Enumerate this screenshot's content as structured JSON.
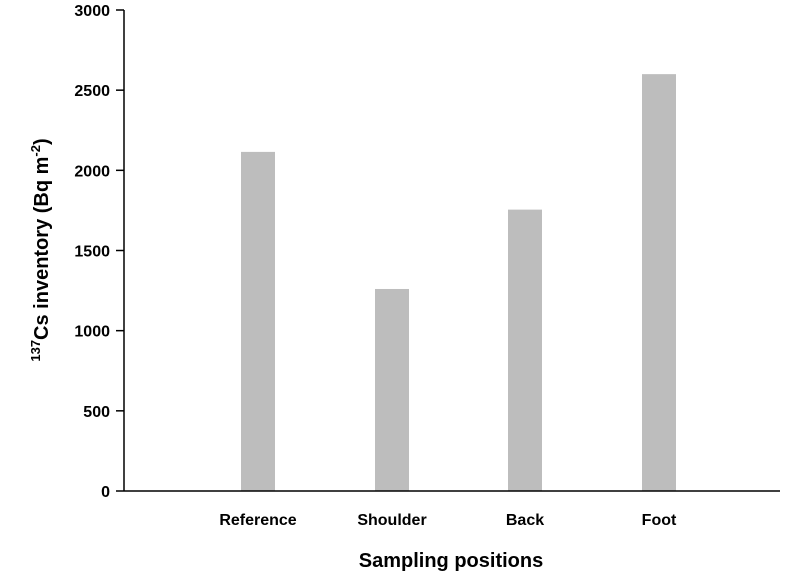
{
  "chart_data": {
    "type": "bar",
    "title": "",
    "categories": [
      "Reference",
      "Shoulder",
      "Back",
      "Foot"
    ],
    "values": [
      2115,
      1260,
      1755,
      2600
    ],
    "xlabel": "Sampling positions",
    "ylabel": {
      "superscript_prefix": "137",
      "main": "Cs inventory (Bq m",
      "superscript_suffix": "-2",
      "close": ")"
    },
    "ylim": [
      0,
      3000
    ],
    "yticks": [
      "0",
      "500",
      "1000",
      "1500",
      "2000",
      "2500",
      "3000"
    ],
    "grid": false,
    "bar_color": "#bdbdbd"
  }
}
